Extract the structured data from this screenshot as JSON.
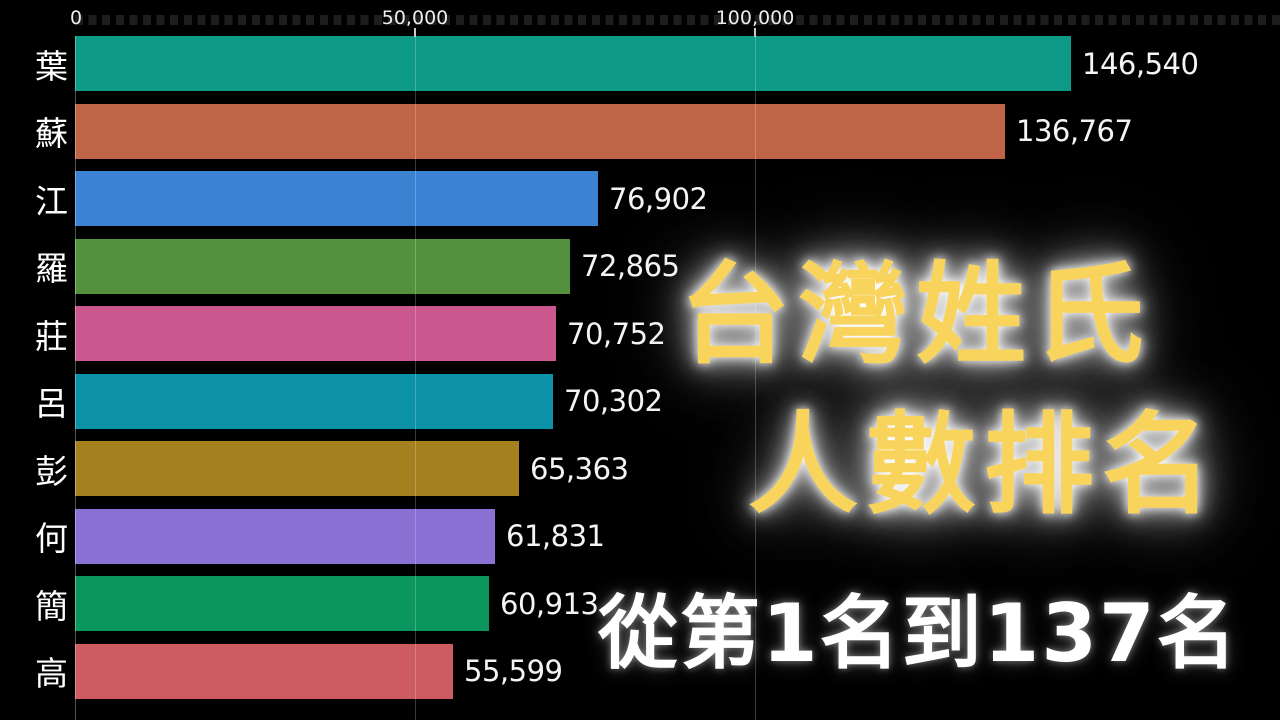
{
  "meta": {
    "background_color": "#000000",
    "text_color": "#ffffff"
  },
  "axis": {
    "ticks": [
      {
        "label": "0",
        "value": 0
      },
      {
        "label": "50,000",
        "value": 50000
      },
      {
        "label": "100,000",
        "value": 100000
      }
    ],
    "minor_tick_step": 2000,
    "scale_max": 177200,
    "gridline_values": [
      50000,
      100000
    ]
  },
  "chart_data": {
    "type": "bar",
    "orientation": "horizontal",
    "title": "台灣姓氏人數排名",
    "xlabel": "",
    "ylabel": "",
    "xlim": [
      0,
      177200
    ],
    "x_ticks": [
      0,
      50000,
      100000
    ],
    "grid": "vertical-major",
    "legend": "none",
    "categories": [
      "葉",
      "蘇",
      "江",
      "羅",
      "莊",
      "呂",
      "彭",
      "何",
      "簡",
      "高"
    ],
    "values": [
      146540,
      136767,
      76902,
      72865,
      70752,
      70302,
      65363,
      61831,
      60913,
      55599
    ],
    "value_labels": [
      "146,540",
      "136,767",
      "76,902",
      "72,865",
      "70,752",
      "70,302",
      "65,363",
      "61,831",
      "60,913",
      "55,599"
    ],
    "bar_colors": [
      "#0d9a87",
      "#c06447",
      "#3c82d3",
      "#53913d",
      "#ca588f",
      "#0b92a7",
      "#a5801f",
      "#8b70d4",
      "#0a965c",
      "#cc5c62"
    ]
  },
  "overlay": {
    "title_line1": "台灣姓氏",
    "title_line2": "人數排名",
    "subtitle": "從第1名到137名",
    "title_color": "#f8d45c",
    "subtitle_color": "#ffffff"
  }
}
